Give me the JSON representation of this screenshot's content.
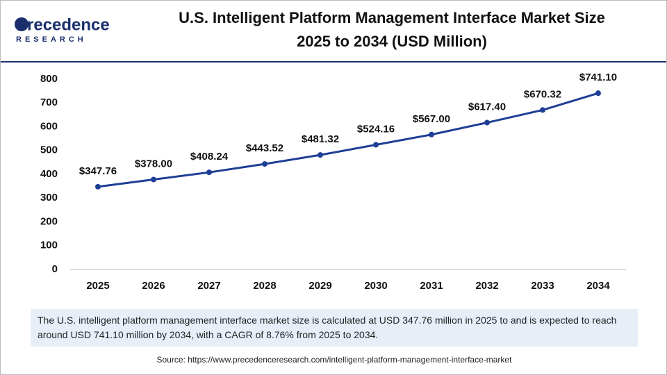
{
  "logo": {
    "name": "Precedence",
    "tagline": "RESEARCH"
  },
  "chart_data": {
    "type": "line",
    "title": "U.S. Intelligent Platform Management Interface Market Size",
    "subtitle": "2025 to 2034 (USD Million)",
    "categories": [
      "2025",
      "2026",
      "2027",
      "2028",
      "2029",
      "2030",
      "2031",
      "2032",
      "2033",
      "2034"
    ],
    "values": [
      347.76,
      378.0,
      408.24,
      443.52,
      481.32,
      524.16,
      567.0,
      617.4,
      670.32,
      741.1
    ],
    "value_labels": [
      "$347.76",
      "$378.00",
      "$408.24",
      "$443.52",
      "$481.32",
      "$524.16",
      "$567.00",
      "$617.40",
      "$670.32",
      "$741.10"
    ],
    "color": "#1f3e96",
    "ylim": [
      0,
      800
    ],
    "yticks": [
      0,
      100,
      200,
      300,
      400,
      500,
      600,
      700,
      800
    ],
    "grid": false
  },
  "description": "The U.S. intelligent platform management interface market size is calculated at USD 347.76 million in 2025 to and is expected to reach around USD 741.10 million by 2034, with a CAGR of 8.76% from 2025 to 2034.",
  "source": "Source: https://www.precedenceresearch.com/intelligent-platform-management-interface-market"
}
